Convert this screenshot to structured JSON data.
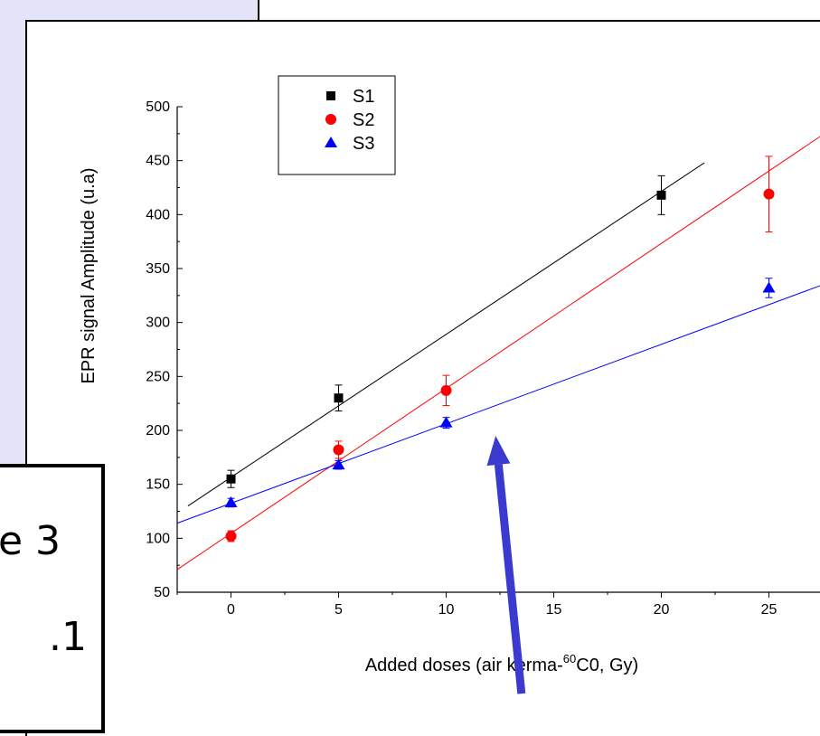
{
  "slide": {
    "fragment_1": "e 3",
    "fragment_2": ".1"
  },
  "colors": {
    "S1": "#000000",
    "S2": "#ff0000",
    "S3": "#0000ff",
    "arrow": "#3a3ad0",
    "background_panel": "#e4e4f8"
  },
  "chart_data": {
    "type": "scatter",
    "xlabel_prefix": "Added doses (air kerma-",
    "xlabel_superscript": "60",
    "xlabel_suffix": "C0, Gy)",
    "ylabel": "EPR signal Amplitude (u.a)",
    "xlim": [
      -2.5,
      27.5
    ],
    "ylim": [
      50,
      500
    ],
    "xticks": [
      0,
      5,
      10,
      15,
      20,
      25
    ],
    "yticks": [
      50,
      100,
      150,
      200,
      250,
      300,
      350,
      400,
      450,
      500
    ],
    "legend_position": "top-left",
    "grid": false,
    "series": [
      {
        "name": "S1",
        "marker": "square",
        "color": "#000000",
        "x": [
          0,
          5,
          20
        ],
        "y": [
          155,
          230,
          418
        ],
        "err": [
          8,
          12,
          18
        ],
        "fit": {
          "x": [
            -2,
            22
          ],
          "y": [
            130,
            448
          ]
        }
      },
      {
        "name": "S2",
        "marker": "circle",
        "color": "#ff0000",
        "x": [
          0,
          5,
          10,
          25
        ],
        "y": [
          102,
          182,
          237,
          419
        ],
        "err": [
          5,
          8,
          14,
          35
        ],
        "fit": {
          "x": [
            -2.5,
            27.5
          ],
          "y": [
            71,
            474
          ]
        }
      },
      {
        "name": "S3",
        "marker": "triangle",
        "color": "#0000ff",
        "x": [
          0,
          5,
          10,
          25
        ],
        "y": [
          133,
          168,
          207,
          332
        ],
        "err": [
          4,
          4,
          5,
          9
        ],
        "fit": {
          "x": [
            -2.5,
            27.5
          ],
          "y": [
            114,
            335
          ]
        }
      }
    ],
    "annotation": {
      "type": "arrow",
      "from": [
        13.5,
        -44
      ],
      "to": [
        12.3,
        195
      ]
    }
  }
}
